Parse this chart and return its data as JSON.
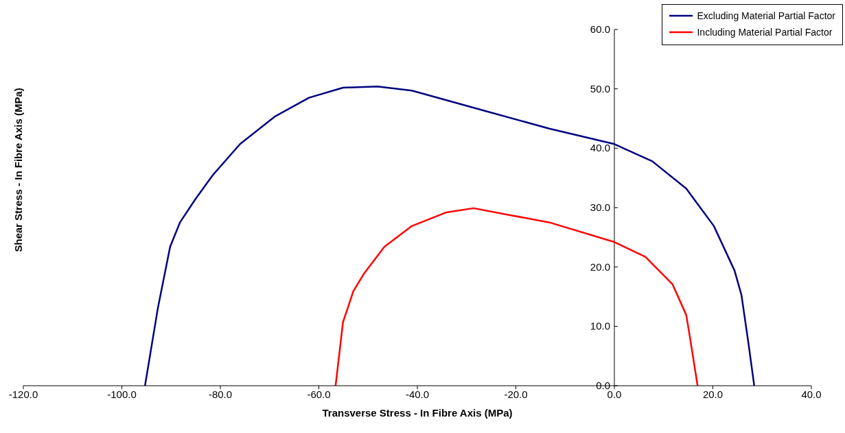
{
  "chart_data": {
    "type": "line",
    "xlabel": "Transverse Stress - In Fibre Axis (MPa)",
    "ylabel": "Shear Stress  - In Fibre Axis (MPa)",
    "xlim": [
      -120,
      40
    ],
    "ylim": [
      0,
      60
    ],
    "xticks": [
      {
        "value": -120,
        "label": "-120.0"
      },
      {
        "value": -100,
        "label": "-100.0"
      },
      {
        "value": -80,
        "label": "-80.0"
      },
      {
        "value": -60,
        "label": "-60.0"
      },
      {
        "value": -40,
        "label": "-40.0"
      },
      {
        "value": -20,
        "label": "-20.0"
      },
      {
        "value": 0,
        "label": "0.0"
      },
      {
        "value": 20,
        "label": "20.0"
      },
      {
        "value": 40,
        "label": "40.0"
      }
    ],
    "yticks": [
      {
        "value": 0,
        "label": "0.0"
      },
      {
        "value": 10,
        "label": "10.0"
      },
      {
        "value": 20,
        "label": "20.0"
      },
      {
        "value": 30,
        "label": "30.0"
      },
      {
        "value": 40,
        "label": "40.0"
      },
      {
        "value": 50,
        "label": "50.0"
      },
      {
        "value": 60,
        "label": "60.0"
      }
    ],
    "grid": false,
    "legend": "top right",
    "marker": "none",
    "line_style": "solid",
    "series": [
      {
        "name": "Excluding Material Partial Factor",
        "color": "#000080",
        "x": [
          -95.3,
          -92.7,
          -90.2,
          -88.2,
          -85.0,
          -81.5,
          -76.0,
          -69.0,
          -62.0,
          -55.1,
          -48.1,
          -41.1,
          -27.2,
          -13.2,
          0,
          7.7,
          14.6,
          20.2,
          24.4,
          25.8,
          27.2,
          28.4
        ],
        "values": [
          0,
          13.0,
          23.4,
          27.5,
          31.5,
          35.5,
          40.7,
          45.3,
          48.5,
          50.2,
          50.4,
          49.7,
          46.5,
          43.3,
          40.7,
          37.8,
          33.2,
          26.9,
          19.4,
          15.3,
          7.3,
          0
        ]
      },
      {
        "name": "Including Material Partial Factor",
        "color": "#ff0000",
        "x": [
          -56.6,
          -55.1,
          -53.0,
          -50.9,
          -46.7,
          -41.1,
          -34.1,
          -28.6,
          -21.6,
          -13.2,
          0,
          6.3,
          11.8,
          14.6,
          15.3,
          16.9
        ],
        "values": [
          0,
          10.7,
          15.9,
          18.8,
          23.4,
          26.9,
          29.2,
          29.9,
          28.8,
          27.5,
          24.2,
          21.7,
          17.1,
          11.9,
          8.4,
          0
        ]
      }
    ]
  }
}
